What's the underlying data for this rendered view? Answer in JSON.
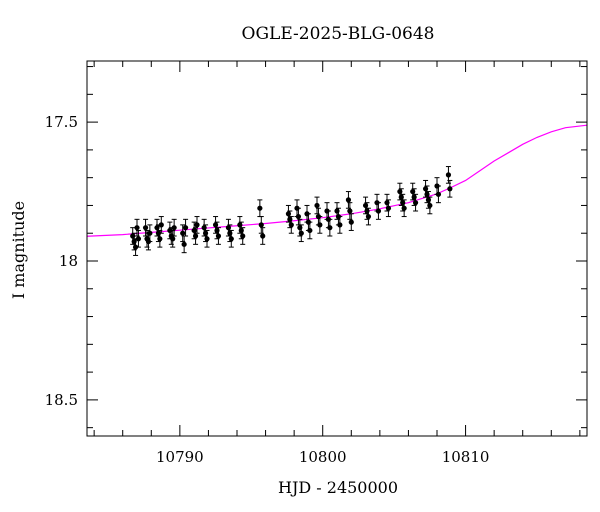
{
  "chart_data": {
    "type": "scatter",
    "title": "OGLE-2025-BLG-0648",
    "xlabel": "HJD - 2450000",
    "ylabel": "I magnitude",
    "xlim": [
      10783.5,
      10818.5
    ],
    "ylim": [
      18.63,
      17.28
    ],
    "y_inverted": true,
    "grid": false,
    "x_major_ticks": [
      10790,
      10800,
      10810
    ],
    "x_tick_labels": [
      "10790",
      "10800",
      "10810"
    ],
    "y_major_ticks": [
      17.5,
      18,
      18.5
    ],
    "y_tick_labels": [
      "17.5",
      "18",
      "18.5"
    ],
    "colors": {
      "data": "#000000",
      "model": "#ff00ff",
      "axes": "#000000"
    },
    "series": [
      {
        "kind": "model",
        "color": "#ff00ff",
        "x": [
          10783.5,
          10786,
          10788,
          10790,
          10792,
          10794,
          10796,
          10798,
          10800,
          10802,
          10804,
          10806,
          10808,
          10809,
          10810,
          10811,
          10812,
          10813,
          10814,
          10815,
          10816,
          10817,
          10818.5
        ],
        "y": [
          17.911,
          17.905,
          17.897,
          17.889,
          17.881,
          17.873,
          17.865,
          17.855,
          17.844,
          17.83,
          17.812,
          17.79,
          17.758,
          17.735,
          17.71,
          17.675,
          17.64,
          17.61,
          17.58,
          17.555,
          17.535,
          17.52,
          17.511
        ]
      },
      {
        "kind": "observations",
        "color": "#000000",
        "points": [
          {
            "x": 10786.7,
            "y": 17.91,
            "err": 0.03
          },
          {
            "x": 10786.8,
            "y": 17.93,
            "err": 0.03
          },
          {
            "x": 10786.9,
            "y": 17.95,
            "err": 0.03
          },
          {
            "x": 10787.0,
            "y": 17.88,
            "err": 0.03
          },
          {
            "x": 10787.1,
            "y": 17.92,
            "err": 0.03
          },
          {
            "x": 10787.6,
            "y": 17.88,
            "err": 0.03
          },
          {
            "x": 10787.7,
            "y": 17.92,
            "err": 0.03
          },
          {
            "x": 10787.8,
            "y": 17.93,
            "err": 0.03
          },
          {
            "x": 10787.9,
            "y": 17.9,
            "err": 0.03
          },
          {
            "x": 10788.4,
            "y": 17.88,
            "err": 0.03
          },
          {
            "x": 10788.5,
            "y": 17.9,
            "err": 0.03
          },
          {
            "x": 10788.6,
            "y": 17.92,
            "err": 0.03
          },
          {
            "x": 10788.7,
            "y": 17.87,
            "err": 0.03
          },
          {
            "x": 10789.3,
            "y": 17.89,
            "err": 0.03
          },
          {
            "x": 10789.4,
            "y": 17.91,
            "err": 0.03
          },
          {
            "x": 10789.5,
            "y": 17.92,
            "err": 0.03
          },
          {
            "x": 10789.6,
            "y": 17.88,
            "err": 0.03
          },
          {
            "x": 10790.2,
            "y": 17.9,
            "err": 0.03
          },
          {
            "x": 10790.3,
            "y": 17.94,
            "err": 0.03
          },
          {
            "x": 10790.4,
            "y": 17.88,
            "err": 0.03
          },
          {
            "x": 10791.0,
            "y": 17.89,
            "err": 0.03
          },
          {
            "x": 10791.1,
            "y": 17.91,
            "err": 0.03
          },
          {
            "x": 10791.2,
            "y": 17.87,
            "err": 0.03
          },
          {
            "x": 10791.7,
            "y": 17.88,
            "err": 0.03
          },
          {
            "x": 10791.8,
            "y": 17.9,
            "err": 0.03
          },
          {
            "x": 10791.9,
            "y": 17.92,
            "err": 0.03
          },
          {
            "x": 10792.5,
            "y": 17.87,
            "err": 0.03
          },
          {
            "x": 10792.6,
            "y": 17.89,
            "err": 0.03
          },
          {
            "x": 10792.7,
            "y": 17.91,
            "err": 0.03
          },
          {
            "x": 10793.4,
            "y": 17.88,
            "err": 0.03
          },
          {
            "x": 10793.5,
            "y": 17.9,
            "err": 0.03
          },
          {
            "x": 10793.6,
            "y": 17.92,
            "err": 0.03
          },
          {
            "x": 10794.2,
            "y": 17.87,
            "err": 0.03
          },
          {
            "x": 10794.3,
            "y": 17.89,
            "err": 0.03
          },
          {
            "x": 10794.4,
            "y": 17.91,
            "err": 0.03
          },
          {
            "x": 10795.6,
            "y": 17.81,
            "err": 0.03
          },
          {
            "x": 10795.7,
            "y": 17.87,
            "err": 0.03
          },
          {
            "x": 10795.8,
            "y": 17.91,
            "err": 0.03
          },
          {
            "x": 10797.6,
            "y": 17.83,
            "err": 0.03
          },
          {
            "x": 10797.7,
            "y": 17.85,
            "err": 0.03
          },
          {
            "x": 10797.8,
            "y": 17.87,
            "err": 0.03
          },
          {
            "x": 10798.2,
            "y": 17.81,
            "err": 0.03
          },
          {
            "x": 10798.3,
            "y": 17.84,
            "err": 0.03
          },
          {
            "x": 10798.4,
            "y": 17.88,
            "err": 0.03
          },
          {
            "x": 10798.5,
            "y": 17.9,
            "err": 0.03
          },
          {
            "x": 10798.9,
            "y": 17.83,
            "err": 0.03
          },
          {
            "x": 10799.0,
            "y": 17.86,
            "err": 0.03
          },
          {
            "x": 10799.1,
            "y": 17.89,
            "err": 0.03
          },
          {
            "x": 10799.6,
            "y": 17.8,
            "err": 0.03
          },
          {
            "x": 10799.7,
            "y": 17.84,
            "err": 0.03
          },
          {
            "x": 10799.8,
            "y": 17.87,
            "err": 0.03
          },
          {
            "x": 10800.3,
            "y": 17.82,
            "err": 0.03
          },
          {
            "x": 10800.4,
            "y": 17.85,
            "err": 0.03
          },
          {
            "x": 10800.5,
            "y": 17.88,
            "err": 0.03
          },
          {
            "x": 10801.0,
            "y": 17.82,
            "err": 0.03
          },
          {
            "x": 10801.1,
            "y": 17.84,
            "err": 0.03
          },
          {
            "x": 10801.2,
            "y": 17.87,
            "err": 0.03
          },
          {
            "x": 10801.8,
            "y": 17.78,
            "err": 0.03
          },
          {
            "x": 10801.9,
            "y": 17.82,
            "err": 0.03
          },
          {
            "x": 10802.0,
            "y": 17.86,
            "err": 0.03
          },
          {
            "x": 10803.0,
            "y": 17.8,
            "err": 0.03
          },
          {
            "x": 10803.1,
            "y": 17.82,
            "err": 0.03
          },
          {
            "x": 10803.2,
            "y": 17.84,
            "err": 0.03
          },
          {
            "x": 10803.8,
            "y": 17.79,
            "err": 0.03
          },
          {
            "x": 10803.9,
            "y": 17.82,
            "err": 0.03
          },
          {
            "x": 10804.5,
            "y": 17.79,
            "err": 0.03
          },
          {
            "x": 10804.6,
            "y": 17.81,
            "err": 0.03
          },
          {
            "x": 10805.4,
            "y": 17.75,
            "err": 0.03
          },
          {
            "x": 10805.5,
            "y": 17.77,
            "err": 0.03
          },
          {
            "x": 10805.6,
            "y": 17.79,
            "err": 0.03
          },
          {
            "x": 10805.7,
            "y": 17.81,
            "err": 0.03
          },
          {
            "x": 10806.3,
            "y": 17.75,
            "err": 0.03
          },
          {
            "x": 10806.4,
            "y": 17.77,
            "err": 0.03
          },
          {
            "x": 10806.5,
            "y": 17.79,
            "err": 0.03
          },
          {
            "x": 10807.2,
            "y": 17.74,
            "err": 0.03
          },
          {
            "x": 10807.3,
            "y": 17.76,
            "err": 0.03
          },
          {
            "x": 10807.4,
            "y": 17.78,
            "err": 0.03
          },
          {
            "x": 10807.5,
            "y": 17.8,
            "err": 0.03
          },
          {
            "x": 10808.0,
            "y": 17.73,
            "err": 0.03
          },
          {
            "x": 10808.1,
            "y": 17.76,
            "err": 0.03
          },
          {
            "x": 10808.8,
            "y": 17.69,
            "err": 0.03
          },
          {
            "x": 10808.9,
            "y": 17.74,
            "err": 0.03
          }
        ]
      }
    ]
  }
}
